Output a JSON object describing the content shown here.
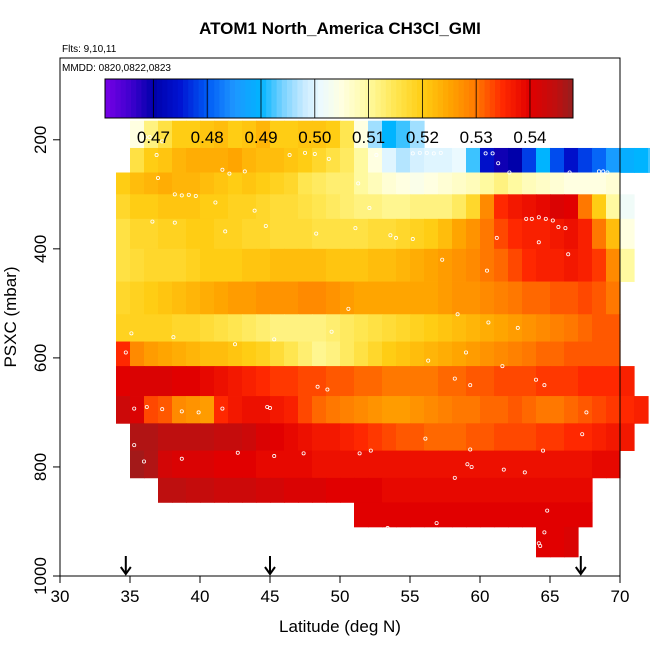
{
  "chart_data": {
    "type": "heatmap",
    "title": "ATOM1 North_America CH3Cl_GMI",
    "flights_note": "Flts: 9,10,11",
    "dates_note": "MMDD: 0820,0822,0823",
    "xlabel": "Latitude (deg N)",
    "ylabel": "PSXC (mbar)",
    "xlim": [
      30,
      70
    ],
    "ylim": [
      1000,
      50
    ],
    "x_ticks": [
      "30",
      "35",
      "40",
      "45",
      "50",
      "55",
      "60",
      "65",
      "70"
    ],
    "y_ticks": [
      "200",
      "400",
      "600",
      "800",
      "1000"
    ],
    "colorbar": {
      "range": [
        0.461,
        0.548
      ],
      "tick_values": [
        0.47,
        0.48,
        0.49,
        0.5,
        0.51,
        0.52,
        0.53,
        0.54
      ],
      "tick_labels": [
        "0.47",
        "0.48",
        "0.49",
        "0.50",
        "0.51",
        "0.52",
        "0.53",
        "0.54"
      ]
    },
    "arrows_latitude": [
      34.7,
      45.0,
      67.2
    ],
    "cell_width_deg": 1,
    "layers": [
      {
        "p_top": 165,
        "p_bot": 215,
        "lat_from": 35,
        "values": [
          0.505,
          0.512,
          0.516,
          0.52,
          0.52,
          0.521,
          0.522,
          0.52,
          0.521,
          0.523,
          0.52,
          0.52,
          0.521,
          0.521,
          0.52,
          0.515,
          0.505,
          0.496,
          0.49,
          0.492,
          0.496
        ]
      },
      {
        "p_top": 215,
        "p_bot": 260,
        "lat_from": 35,
        "values": [
          0.516,
          0.52,
          0.521,
          0.523,
          0.524,
          0.524,
          0.524,
          0.525,
          0.523,
          0.522,
          0.522,
          0.521,
          0.52,
          0.518,
          0.516,
          0.514,
          0.51,
          0.505,
          0.5,
          0.497,
          0.499,
          0.5,
          0.5,
          0.501,
          0.492,
          0.474,
          0.469,
          0.47,
          0.478,
          0.49,
          0.479,
          0.474,
          0.478,
          0.481,
          0.486,
          0.489,
          0.49,
          0.492,
          0.493,
          0.492
        ]
      },
      {
        "p_top": 260,
        "p_bot": 300,
        "lat_from": 34,
        "values": [
          0.52,
          0.522,
          0.523,
          0.524,
          0.523,
          0.523,
          0.522,
          0.521,
          0.52,
          0.521,
          0.52,
          0.519,
          0.518,
          0.515,
          0.514,
          0.513,
          0.513,
          0.51,
          0.508,
          0.506,
          0.505,
          0.504,
          0.505,
          0.506,
          0.507,
          0.508,
          0.51,
          0.512,
          0.51,
          0.508,
          0.507,
          0.506,
          0.505,
          0.505,
          0.505,
          0.506
        ]
      },
      {
        "p_top": 300,
        "p_bot": 345,
        "lat_from": 34,
        "values": [
          0.518,
          0.52,
          0.52,
          0.521,
          0.521,
          0.521,
          0.52,
          0.52,
          0.519,
          0.519,
          0.518,
          0.517,
          0.517,
          0.516,
          0.515,
          0.514,
          0.513,
          0.512,
          0.512,
          0.511,
          0.511,
          0.512,
          0.512,
          0.512,
          0.514,
          0.518,
          0.528,
          0.535,
          0.537,
          0.538,
          0.539,
          0.541,
          0.54,
          0.53,
          0.52,
          0.51,
          0.502
        ]
      },
      {
        "p_top": 345,
        "p_bot": 400,
        "lat_from": 34,
        "values": [
          0.516,
          0.518,
          0.518,
          0.519,
          0.519,
          0.52,
          0.52,
          0.519,
          0.519,
          0.518,
          0.518,
          0.517,
          0.517,
          0.517,
          0.516,
          0.516,
          0.516,
          0.516,
          0.517,
          0.517,
          0.518,
          0.519,
          0.52,
          0.522,
          0.525,
          0.527,
          0.53,
          0.533,
          0.535,
          0.536,
          0.536,
          0.537,
          0.538,
          0.536,
          0.53,
          0.522,
          0.505
        ]
      },
      {
        "p_top": 400,
        "p_bot": 460,
        "lat_from": 34,
        "values": [
          0.516,
          0.517,
          0.518,
          0.518,
          0.518,
          0.519,
          0.52,
          0.52,
          0.52,
          0.521,
          0.521,
          0.522,
          0.522,
          0.522,
          0.522,
          0.521,
          0.521,
          0.521,
          0.522,
          0.522,
          0.523,
          0.524,
          0.525,
          0.526,
          0.527,
          0.528,
          0.53,
          0.531,
          0.533,
          0.535,
          0.536,
          0.536,
          0.537,
          0.536,
          0.534,
          0.528,
          0.51
        ]
      },
      {
        "p_top": 460,
        "p_bot": 520,
        "lat_from": 34,
        "values": [
          0.518,
          0.519,
          0.52,
          0.521,
          0.522,
          0.523,
          0.524,
          0.525,
          0.526,
          0.526,
          0.527,
          0.527,
          0.527,
          0.528,
          0.528,
          0.527,
          0.526,
          0.525,
          0.525,
          0.525,
          0.525,
          0.525,
          0.525,
          0.526,
          0.527,
          0.527,
          0.528,
          0.529,
          0.53,
          0.531,
          0.531,
          0.532,
          0.532,
          0.533,
          0.532,
          0.53
        ]
      },
      {
        "p_top": 520,
        "p_bot": 570,
        "lat_from": 34,
        "values": [
          0.519,
          0.519,
          0.519,
          0.519,
          0.518,
          0.518,
          0.517,
          0.516,
          0.515,
          0.514,
          0.513,
          0.512,
          0.512,
          0.512,
          0.512,
          0.513,
          0.514,
          0.515,
          0.516,
          0.517,
          0.518,
          0.519,
          0.52,
          0.521,
          0.522,
          0.523,
          0.524,
          0.525,
          0.526,
          0.527,
          0.528,
          0.529,
          0.53,
          0.531,
          0.532,
          0.532
        ]
      },
      {
        "p_top": 570,
        "p_bot": 615,
        "lat_from": 34,
        "values": [
          0.535,
          0.528,
          0.526,
          0.525,
          0.524,
          0.523,
          0.522,
          0.522,
          0.521,
          0.52,
          0.519,
          0.517,
          0.515,
          0.513,
          0.511,
          0.512,
          0.514,
          0.516,
          0.518,
          0.52,
          0.521,
          0.522,
          0.523,
          0.524,
          0.525,
          0.526,
          0.527,
          0.528,
          0.529,
          0.53,
          0.531,
          0.531,
          0.532,
          0.532,
          0.532,
          0.532
        ]
      },
      {
        "p_top": 615,
        "p_bot": 670,
        "lat_from": 34,
        "values": [
          0.54,
          0.541,
          0.541,
          0.541,
          0.54,
          0.54,
          0.539,
          0.538,
          0.537,
          0.536,
          0.535,
          0.534,
          0.534,
          0.533,
          0.533,
          0.532,
          0.532,
          0.531,
          0.531,
          0.53,
          0.53,
          0.53,
          0.53,
          0.531,
          0.531,
          0.532,
          0.532,
          0.533,
          0.533,
          0.533,
          0.534,
          0.534,
          0.534,
          0.535,
          0.535,
          0.535,
          0.536
        ]
      },
      {
        "p_top": 670,
        "p_bot": 720,
        "lat_from": 34,
        "values": [
          0.543,
          0.541,
          0.533,
          0.532,
          0.528,
          0.527,
          0.526,
          0.535,
          0.537,
          0.538,
          0.538,
          0.537,
          0.536,
          0.533,
          0.531,
          0.53,
          0.529,
          0.528,
          0.527,
          0.526,
          0.526,
          0.527,
          0.528,
          0.529,
          0.53,
          0.53,
          0.531,
          0.531,
          0.532,
          0.531,
          0.53,
          0.53,
          0.531,
          0.532,
          0.533,
          0.534,
          0.535,
          0.536
        ]
      },
      {
        "p_top": 720,
        "p_bot": 770,
        "lat_from": 35,
        "values": [
          0.546,
          0.546,
          0.545,
          0.545,
          0.545,
          0.545,
          0.544,
          0.544,
          0.543,
          0.541,
          0.54,
          0.539,
          0.538,
          0.537,
          0.537,
          0.536,
          0.535,
          0.534,
          0.533,
          0.532,
          0.532,
          0.531,
          0.531,
          0.531,
          0.532,
          0.532,
          0.533,
          0.533,
          0.533,
          0.534,
          0.534,
          0.535,
          0.535,
          0.536,
          0.537,
          0.537
        ]
      },
      {
        "p_top": 770,
        "p_bot": 820,
        "lat_from": 35,
        "values": [
          0.547,
          0.546,
          0.542,
          0.541,
          0.541,
          0.541,
          0.54,
          0.54,
          0.54,
          0.539,
          0.539,
          0.539,
          0.539,
          0.538,
          0.538,
          0.538,
          0.538,
          0.538,
          0.538,
          0.538,
          0.538,
          0.538,
          0.538,
          0.538,
          0.538,
          0.538,
          0.538,
          0.538,
          0.538,
          0.538,
          0.538,
          0.538,
          0.538,
          0.539,
          0.539
        ]
      },
      {
        "p_top": 820,
        "p_bot": 865,
        "lat_from": 37,
        "values": [
          0.545,
          0.545,
          0.544,
          0.544,
          0.543,
          0.543,
          0.543,
          0.542,
          0.542,
          0.541,
          0.541,
          0.541,
          0.54,
          0.54,
          0.54,
          0.54,
          0.539,
          0.539,
          0.539,
          0.539,
          0.539,
          0.539,
          0.539,
          0.539,
          0.539,
          0.539,
          0.539,
          0.539,
          0.539,
          0.539,
          0.539
        ]
      },
      {
        "p_top": 865,
        "p_bot": 910,
        "lat_from": 51,
        "values": [
          0.54,
          0.54,
          0.54,
          0.54,
          0.54,
          0.54,
          0.54,
          0.54,
          0.54,
          0.54,
          0.54,
          0.54,
          0.54,
          0.54,
          0.54,
          0.54,
          0.54
        ]
      },
      {
        "p_top": 910,
        "p_bot": 965,
        "lat_from": 64,
        "values": [
          0.54,
          0.54,
          0.541
        ]
      }
    ],
    "observations": [
      [
        36.1,
        195
      ],
      [
        36.4,
        195
      ],
      [
        37.3,
        203
      ],
      [
        36.9,
        228
      ],
      [
        37.0,
        270
      ],
      [
        38.2,
        300
      ],
      [
        38.7,
        302
      ],
      [
        39.2,
        301
      ],
      [
        39.7,
        303
      ],
      [
        41.6,
        255
      ],
      [
        42.1,
        262
      ],
      [
        43.2,
        258
      ],
      [
        46.4,
        228
      ],
      [
        47.5,
        224
      ],
      [
        48.2,
        226
      ],
      [
        49.2,
        235
      ],
      [
        51.3,
        280
      ],
      [
        52.6,
        228
      ],
      [
        55.2,
        225
      ],
      [
        55.7,
        224
      ],
      [
        56.2,
        224
      ],
      [
        56.7,
        225
      ],
      [
        57.2,
        224
      ],
      [
        60.4,
        225
      ],
      [
        60.9,
        225
      ],
      [
        61.3,
        243
      ],
      [
        66.4,
        260
      ],
      [
        68.5,
        258
      ],
      [
        68.8,
        258
      ],
      [
        69.1,
        260
      ],
      [
        62.1,
        260
      ],
      [
        63.3,
        345
      ],
      [
        63.7,
        345
      ],
      [
        64.2,
        342
      ],
      [
        64.7,
        345
      ],
      [
        65.2,
        348
      ],
      [
        65.6,
        360
      ],
      [
        66.1,
        362
      ],
      [
        52.1,
        325
      ],
      [
        53.6,
        375
      ],
      [
        54.0,
        380
      ],
      [
        55.2,
        382
      ],
      [
        61.2,
        380
      ],
      [
        41.1,
        315
      ],
      [
        43.9,
        330
      ],
      [
        36.6,
        350
      ],
      [
        38.2,
        352
      ],
      [
        41.8,
        368
      ],
      [
        44.7,
        358
      ],
      [
        48.3,
        372
      ],
      [
        51.1,
        362
      ],
      [
        64.2,
        388
      ],
      [
        66.3,
        410
      ],
      [
        57.3,
        420
      ],
      [
        60.5,
        440
      ],
      [
        58.4,
        520
      ],
      [
        60.6,
        535
      ],
      [
        62.7,
        545
      ],
      [
        59.0,
        590
      ],
      [
        50.6,
        510
      ],
      [
        49.4,
        552
      ],
      [
        45.3,
        566
      ],
      [
        42.5,
        575
      ],
      [
        38.1,
        562
      ],
      [
        35.1,
        555
      ],
      [
        34.7,
        590
      ],
      [
        56.3,
        605
      ],
      [
        61.6,
        615
      ],
      [
        58.2,
        638
      ],
      [
        64.0,
        640
      ],
      [
        64.6,
        650
      ],
      [
        59.3,
        650
      ],
      [
        48.4,
        653
      ],
      [
        49.1,
        658
      ],
      [
        44.8,
        690
      ],
      [
        45.0,
        692
      ],
      [
        41.6,
        693
      ],
      [
        39.9,
        700
      ],
      [
        38.7,
        698
      ],
      [
        37.3,
        694
      ],
      [
        36.2,
        690
      ],
      [
        35.3,
        693
      ],
      [
        67.3,
        740
      ],
      [
        67.6,
        700
      ],
      [
        64.5,
        770
      ],
      [
        59.3,
        768
      ],
      [
        56.1,
        748
      ],
      [
        52.2,
        770
      ],
      [
        51.4,
        775
      ],
      [
        47.4,
        775
      ],
      [
        45.3,
        780
      ],
      [
        42.7,
        774
      ],
      [
        38.7,
        785
      ],
      [
        36.0,
        790
      ],
      [
        35.3,
        760
      ],
      [
        59.4,
        800
      ],
      [
        59.1,
        795
      ],
      [
        61.7,
        805
      ],
      [
        63.2,
        810
      ],
      [
        58.2,
        820
      ],
      [
        64.8,
        880
      ],
      [
        64.6,
        920
      ],
      [
        64.2,
        940
      ],
      [
        64.3,
        945
      ],
      [
        56.9,
        903
      ],
      [
        53.4,
        912
      ]
    ]
  }
}
